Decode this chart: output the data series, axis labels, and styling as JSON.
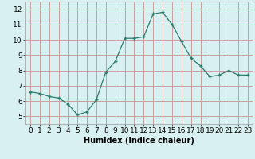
{
  "x": [
    0,
    1,
    2,
    3,
    4,
    5,
    6,
    7,
    8,
    9,
    10,
    11,
    12,
    13,
    14,
    15,
    16,
    17,
    18,
    19,
    20,
    21,
    22,
    23
  ],
  "y": [
    6.6,
    6.5,
    6.3,
    6.2,
    5.8,
    5.1,
    5.3,
    6.1,
    7.9,
    8.6,
    10.1,
    10.1,
    10.2,
    11.7,
    11.8,
    11.0,
    9.9,
    8.8,
    8.3,
    7.6,
    7.7,
    8.0,
    7.7,
    7.7
  ],
  "line_color": "#2d7d6e",
  "marker": "+",
  "bg_color": "#d9f0f0",
  "grid_color": "#c8a0a0",
  "xlabel": "Humidex (Indice chaleur)",
  "xlabel_fontsize": 7,
  "xlim": [
    -0.5,
    23.5
  ],
  "ylim": [
    4.5,
    12.5
  ],
  "yticks": [
    5,
    6,
    7,
    8,
    9,
    10,
    11,
    12
  ],
  "xticks": [
    0,
    1,
    2,
    3,
    4,
    5,
    6,
    7,
    8,
    9,
    10,
    11,
    12,
    13,
    14,
    15,
    16,
    17,
    18,
    19,
    20,
    21,
    22,
    23
  ],
  "tick_fontsize": 6.5
}
